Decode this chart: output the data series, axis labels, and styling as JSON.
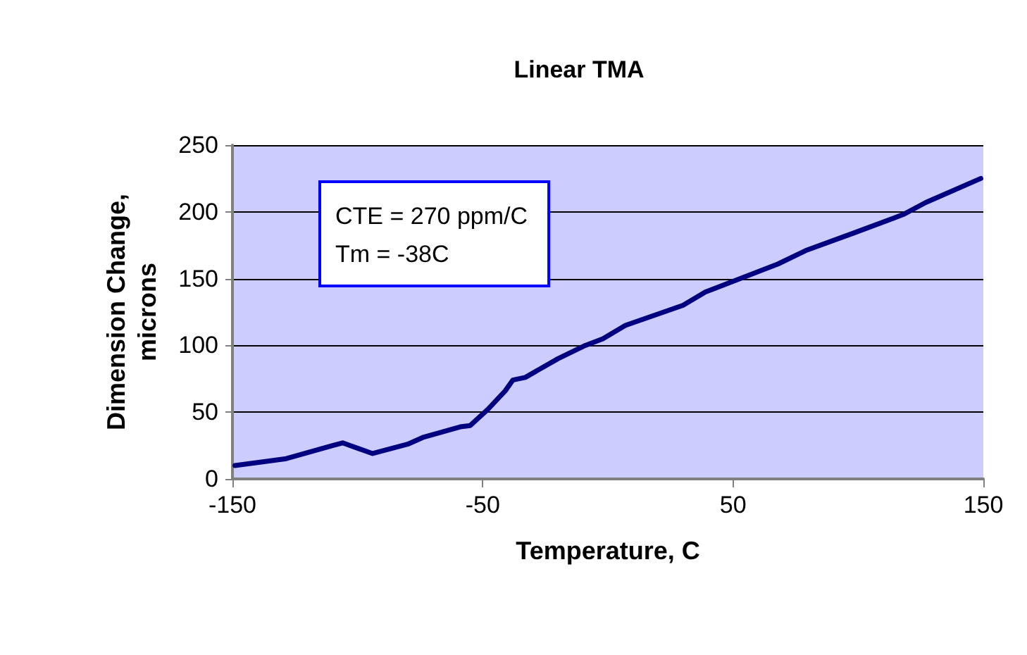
{
  "chart_data": {
    "type": "line",
    "title": "Linear TMA",
    "xlabel": "Temperature, C",
    "ylabel": "Dimension Change,\nmicrons",
    "annotations": [
      "CTE = 270 ppm/C",
      "Tm = -38C"
    ],
    "x": [
      -149,
      -129,
      -110,
      -106,
      -94,
      -80,
      -74,
      -59,
      -55,
      -48,
      -41,
      -38,
      -33,
      -20,
      -9,
      -2,
      7,
      30,
      39,
      68,
      79,
      98,
      118,
      127,
      149
    ],
    "series": [
      {
        "color": "#000080",
        "values": [
          10,
          15,
          25,
          27,
          19,
          26,
          31,
          39,
          40,
          52,
          66,
          74,
          76,
          90,
          100,
          105,
          115,
          130,
          140,
          161,
          171,
          184,
          198,
          207,
          225
        ]
      }
    ],
    "xlim": [
      -150,
      150
    ],
    "xticks": [
      -150,
      -50,
      50,
      150
    ],
    "ylim": [
      0,
      250
    ],
    "yticks": [
      0,
      50,
      100,
      150,
      200,
      250
    ],
    "grid": "y",
    "marker": "none",
    "line_style": "solid"
  }
}
